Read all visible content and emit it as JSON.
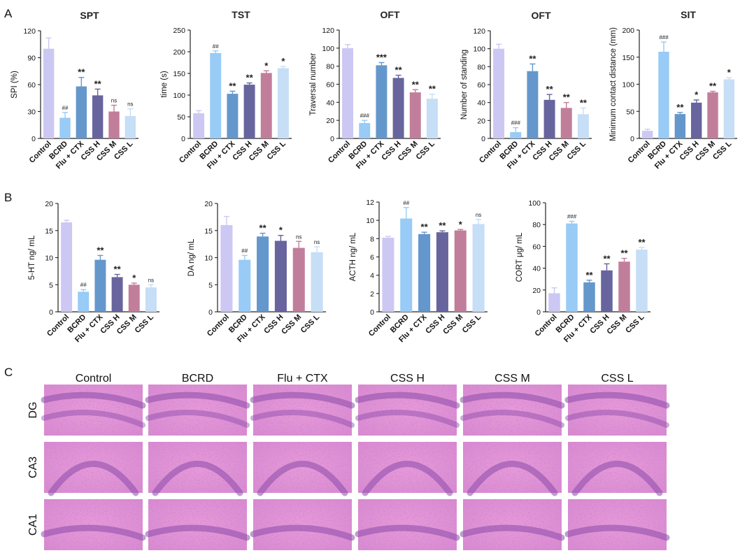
{
  "panels": {
    "a": "A",
    "b": "B",
    "c": "C"
  },
  "colors": [
    "#ccc8f3",
    "#98cbf6",
    "#6497cc",
    "#67649e",
    "#c17e9b",
    "#c6def6"
  ],
  "chart_data": [
    {
      "type": "bar",
      "title": "SPT",
      "ylabel": "SPI (%)",
      "ylim": [
        0,
        120
      ],
      "yticks": [
        0,
        30,
        60,
        90,
        120
      ],
      "categories": [
        "Control",
        "BCRD",
        "Flu + CTX",
        "CSS H",
        "CSS M",
        "CSS L"
      ],
      "values": [
        100,
        23,
        58,
        48,
        30,
        25
      ],
      "errors": [
        12,
        6,
        10,
        7,
        7,
        8
      ],
      "labels": [
        "",
        "##",
        "**",
        "**",
        "ns",
        "ns"
      ]
    },
    {
      "type": "bar",
      "title": "TST",
      "ylabel": "time (s)",
      "ylim": [
        0,
        250
      ],
      "yticks": [
        0,
        50,
        100,
        150,
        200,
        250
      ],
      "categories": [
        "Control",
        "BCRD",
        "Flu + CTX",
        "CSS H",
        "CSS M",
        "CSS L"
      ],
      "values": [
        58,
        197,
        103,
        124,
        151,
        162
      ],
      "errors": [
        6,
        5,
        6,
        4,
        5,
        4
      ],
      "labels": [
        "",
        "##",
        "**",
        "**",
        "*",
        "*"
      ]
    },
    {
      "type": "bar",
      "title": "OFT",
      "ylabel": "Traversal number",
      "ylim": [
        0,
        120
      ],
      "yticks": [
        0,
        20,
        40,
        60,
        80,
        100,
        120
      ],
      "categories": [
        "Control",
        "BCRD",
        "Flu + CTX",
        "CSS H",
        "CSS M",
        "CSS L"
      ],
      "values": [
        100,
        17,
        81,
        67,
        51,
        44
      ],
      "errors": [
        4,
        3,
        3,
        3,
        3,
        5
      ],
      "labels": [
        "",
        "###",
        "***",
        "**",
        "**",
        "**"
      ]
    },
    {
      "type": "bar",
      "title": "OFT",
      "ylabel": "Number of standing",
      "ylim": [
        0,
        120
      ],
      "yticks": [
        0,
        20,
        40,
        60,
        80,
        100,
        120
      ],
      "categories": [
        "Control",
        "BCRD",
        "Flu + CTX",
        "CSS H",
        "CSS M",
        "CSS L"
      ],
      "values": [
        100,
        7,
        75,
        43,
        34,
        27
      ],
      "errors": [
        5,
        5,
        8,
        6,
        6,
        7
      ],
      "labels": [
        "",
        "###",
        "**",
        "**",
        "**",
        "**"
      ]
    },
    {
      "type": "bar",
      "title": "SIT",
      "ylabel": "Minimum contact distance (mm)",
      "ylim": [
        0,
        200
      ],
      "yticks": [
        0,
        50,
        100,
        150,
        200
      ],
      "categories": [
        "Control",
        "BCRD",
        "Flu + CTX",
        "CSS H",
        "CSS M",
        "CSS L"
      ],
      "values": [
        14,
        160,
        45,
        66,
        85,
        109
      ],
      "errors": [
        3,
        18,
        3,
        5,
        2,
        3
      ],
      "labels": [
        "",
        "###",
        "**",
        "*",
        "**",
        "*"
      ]
    },
    {
      "type": "bar",
      "title": "",
      "ylabel": "5-HT ng/ mL",
      "ylim": [
        0,
        20
      ],
      "yticks": [
        0,
        5,
        10,
        15,
        20
      ],
      "categories": [
        "Control",
        "BCRD",
        "Flu + CTX",
        "CSS H",
        "CSS M",
        "CSS L"
      ],
      "values": [
        16.5,
        3.7,
        9.6,
        6.4,
        5.0,
        4.5
      ],
      "errors": [
        0.4,
        0.4,
        0.8,
        0.5,
        0.3,
        0.5
      ],
      "labels": [
        "",
        "##",
        "**",
        "**",
        "*",
        "ns"
      ]
    },
    {
      "type": "bar",
      "title": "",
      "ylabel": "DA ng/ mL",
      "ylim": [
        0,
        20
      ],
      "yticks": [
        0,
        5,
        10,
        15,
        20
      ],
      "categories": [
        "Control",
        "BCRD",
        "Flu + CTX",
        "CSS H",
        "CSS M",
        "CSS L"
      ],
      "values": [
        16.0,
        9.6,
        13.9,
        13.1,
        11.8,
        11.0
      ],
      "errors": [
        1.6,
        0.8,
        0.6,
        1.0,
        1.2,
        1.0
      ],
      "labels": [
        "",
        "##",
        "**",
        "*",
        "ns",
        "ns"
      ]
    },
    {
      "type": "bar",
      "title": "",
      "ylabel": "ACTH ng/ mL",
      "ylim": [
        0,
        12
      ],
      "yticks": [
        0,
        2,
        4,
        6,
        8,
        10,
        12
      ],
      "categories": [
        "Control",
        "BCRD",
        "Flu + CTX",
        "CSS H",
        "CSS M",
        "CSS L"
      ],
      "values": [
        8.1,
        10.2,
        8.5,
        8.7,
        8.9,
        9.6
      ],
      "errors": [
        0.15,
        1.2,
        0.2,
        0.15,
        0.1,
        0.5
      ],
      "labels": [
        "",
        "##",
        "**",
        "**",
        "*",
        "ns"
      ]
    },
    {
      "type": "bar",
      "title": "",
      "ylabel": "CORT μg/ mL",
      "ylim": [
        0,
        100
      ],
      "yticks": [
        0,
        20,
        40,
        60,
        80,
        100
      ],
      "categories": [
        "Control",
        "BCRD",
        "Flu + CTX",
        "CSS H",
        "CSS M",
        "CSS L"
      ],
      "values": [
        17,
        81,
        27,
        38,
        46,
        57
      ],
      "errors": [
        5,
        2,
        2,
        6,
        3,
        2
      ],
      "labels": [
        "",
        "###",
        "**",
        "**",
        "**",
        "**"
      ]
    }
  ],
  "histology": {
    "columns": [
      "Control",
      "BCRD",
      "Flu + CTX",
      "CSS H",
      "CSS M",
      "CSS L"
    ],
    "rows": [
      "DG",
      "CA3",
      "CA1"
    ]
  }
}
